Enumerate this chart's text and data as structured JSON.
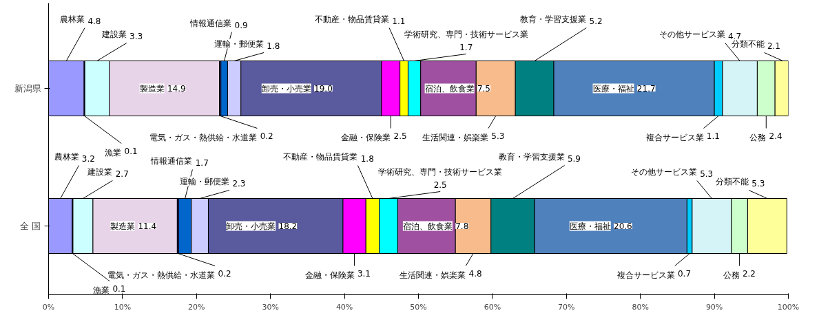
{
  "chart_data": {
    "type": "bar",
    "orientation": "horizontal",
    "stacked": true,
    "categories": [
      "新潟県",
      "全 国"
    ],
    "xlim": [
      0,
      100
    ],
    "xticks": [
      {
        "value": 0,
        "label": "0%"
      },
      {
        "value": 10,
        "label": "10%"
      },
      {
        "value": 20,
        "label": "20%"
      },
      {
        "value": 30,
        "label": "30%"
      },
      {
        "value": 40,
        "label": "40%"
      },
      {
        "value": 50,
        "label": "50%"
      },
      {
        "value": 60,
        "label": "60%"
      },
      {
        "value": 70,
        "label": "70%"
      },
      {
        "value": 80,
        "label": "80%"
      },
      {
        "value": 90,
        "label": "90%"
      },
      {
        "value": 100,
        "label": "100%"
      }
    ],
    "series": [
      {
        "name": "農林業",
        "color": "#9999ff",
        "values": [
          4.8,
          3.2
        ],
        "value_labels": [
          "4.8",
          "3.2"
        ]
      },
      {
        "name": "漁業",
        "color": "#000080",
        "values": [
          0.1,
          0.1
        ],
        "value_labels": [
          "0.1",
          "0.1"
        ]
      },
      {
        "name": "建設業",
        "color": "#ccffff",
        "values": [
          3.3,
          2.7
        ],
        "value_labels": [
          "3.3",
          "2.7"
        ]
      },
      {
        "name": "製造業",
        "color": "#e8d4e8",
        "values": [
          14.9,
          11.4
        ],
        "value_labels": [
          "14.9",
          "11.4"
        ]
      },
      {
        "name": "電気・ガス・熱供給・水道業",
        "color": "#333399",
        "values": [
          0.2,
          0.2
        ],
        "value_labels": [
          "0.2",
          "0.2"
        ]
      },
      {
        "name": "情報通信業",
        "color": "#0066cc",
        "values": [
          0.9,
          1.7
        ],
        "value_labels": [
          "0.9",
          "1.7"
        ]
      },
      {
        "name": "運輸・郵便業",
        "color": "#ccccff",
        "values": [
          1.8,
          2.3
        ],
        "value_labels": [
          "1.8",
          "2.3"
        ]
      },
      {
        "name": "卸売・小売業",
        "color": "#5a5a9e",
        "values": [
          19.0,
          18.2
        ],
        "value_labels": [
          "19.0",
          "18.2"
        ]
      },
      {
        "name": "金融・保険業",
        "color": "#ff00ff",
        "values": [
          2.5,
          3.1
        ],
        "value_labels": [
          "2.5",
          "3.1"
        ]
      },
      {
        "name": "不動産・物品賃貸業",
        "color": "#ffff00",
        "values": [
          1.1,
          1.8
        ],
        "value_labels": [
          "1.1",
          "1.8"
        ]
      },
      {
        "name": "学術研究、専門・技術サービス業",
        "color": "#00ffff",
        "values": [
          1.7,
          2.5
        ],
        "value_labels": [
          "1.7",
          "2.5"
        ]
      },
      {
        "name": "宿泊、飲食業",
        "color": "#a050a0",
        "values": [
          7.5,
          7.8
        ],
        "value_labels": [
          "7.5",
          "7.8"
        ]
      },
      {
        "name": "生活関連・娯楽業",
        "color": "#f8bc8c",
        "values": [
          5.3,
          4.8
        ],
        "value_labels": [
          "5.3",
          "4.8"
        ]
      },
      {
        "name": "教育・学習支援業",
        "color": "#008080",
        "values": [
          5.2,
          5.9
        ],
        "value_labels": [
          "5.2",
          "5.9"
        ]
      },
      {
        "name": "医療・福祉",
        "color": "#4f81bd",
        "values": [
          21.7,
          20.6
        ],
        "value_labels": [
          "21.7",
          "20.6"
        ]
      },
      {
        "name": "複合サービス業",
        "color": "#00ccff",
        "values": [
          1.1,
          0.7
        ],
        "value_labels": [
          "1.1",
          "0.7"
        ]
      },
      {
        "name": "その他サービス業",
        "color": "#d4f4f8",
        "values": [
          4.7,
          5.3
        ],
        "value_labels": [
          "4.7",
          "5.3"
        ]
      },
      {
        "name": "公務",
        "color": "#ccffcc",
        "values": [
          2.4,
          2.2
        ],
        "value_labels": [
          "2.4",
          "2.2"
        ]
      },
      {
        "name": "分類不能",
        "color": "#ffff99",
        "values": [
          2.1,
          5.3
        ],
        "value_labels": [
          "2.1",
          "5.3"
        ]
      }
    ]
  }
}
